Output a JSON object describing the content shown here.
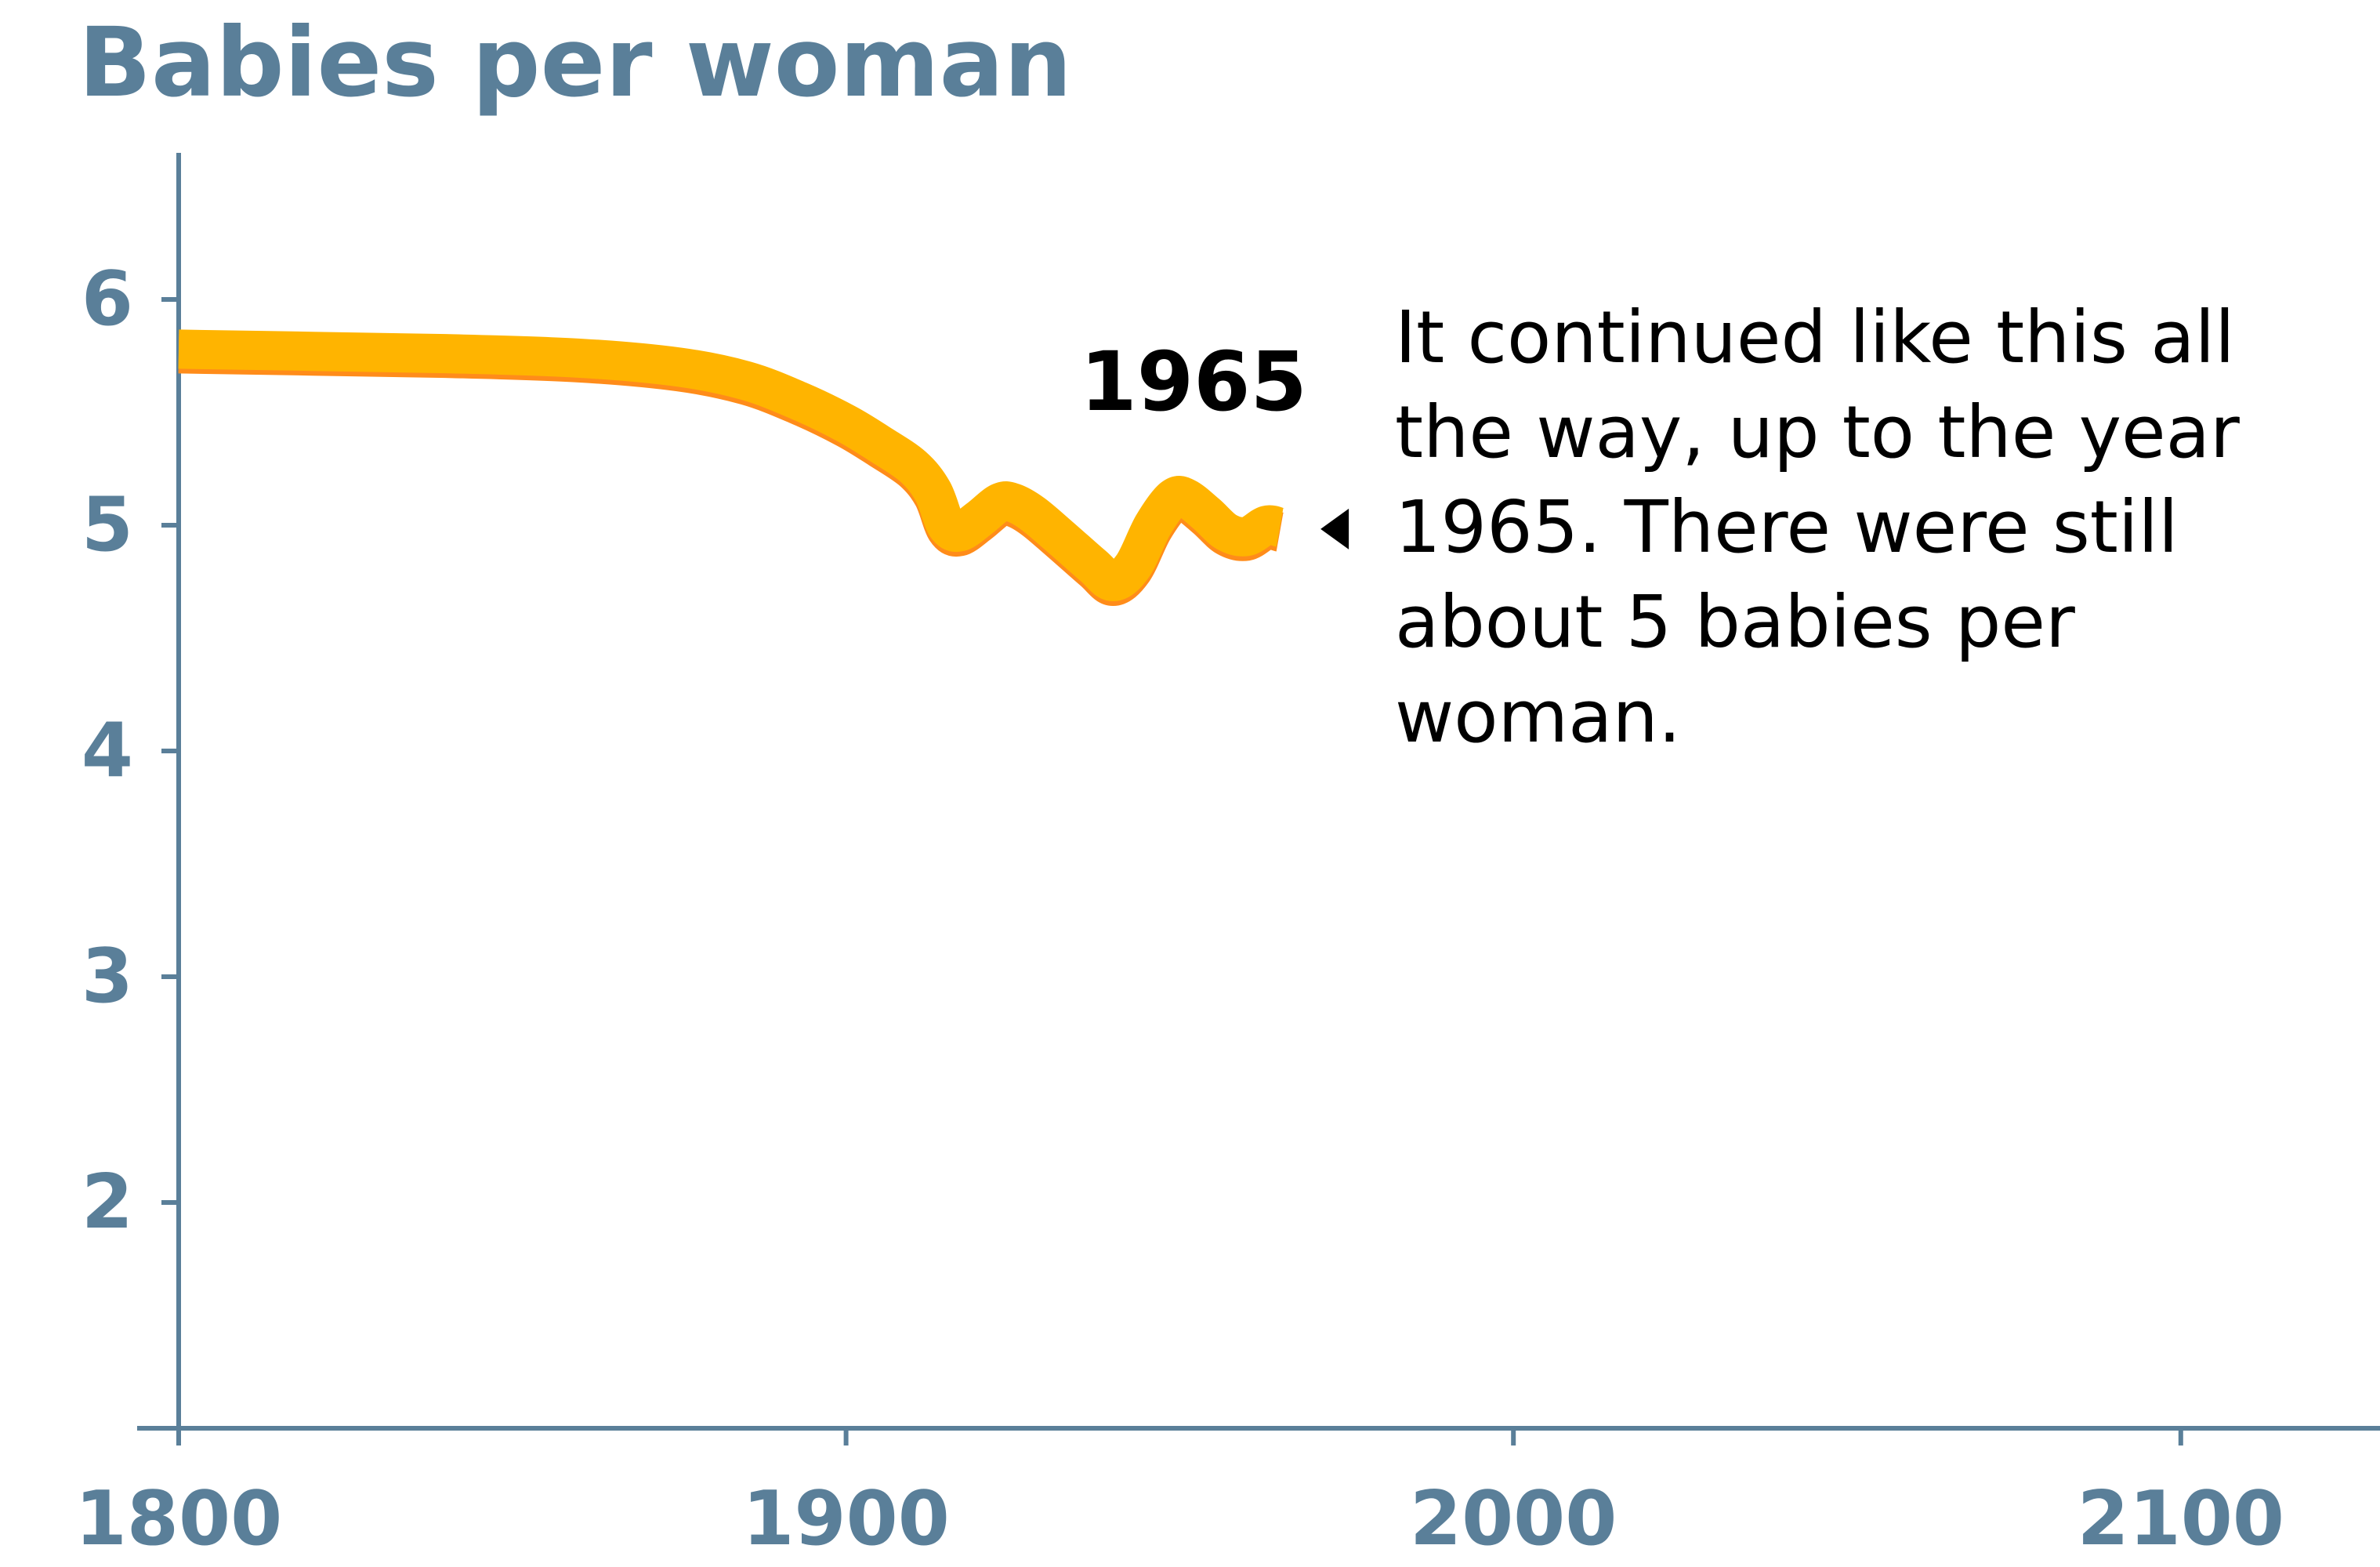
{
  "chart_data": {
    "type": "line",
    "title": "Babies per woman",
    "xlabel": "",
    "ylabel": "",
    "xlim": [
      1800,
      2130
    ],
    "ylim": [
      1,
      6.6
    ],
    "x_ticks": [
      1800,
      1900,
      2000,
      2100
    ],
    "x_tick_labels": [
      "1800",
      "1900",
      "2000",
      "2100"
    ],
    "y_ticks": [
      2,
      3,
      4,
      5,
      6
    ],
    "y_tick_labels": [
      "2",
      "3",
      "4",
      "5",
      "6"
    ],
    "grid": false,
    "legend": "none",
    "series": [
      {
        "x": [
          1800,
          1820,
          1840,
          1860,
          1875,
          1885,
          1893,
          1900,
          1905,
          1910,
          1913,
          1915,
          1917,
          1920,
          1923,
          1925,
          1928,
          1932,
          1937,
          1940,
          1943,
          1946,
          1949,
          1951,
          1954,
          1957,
          1960,
          1963,
          1965
        ],
        "values": [
          5.78,
          5.77,
          5.76,
          5.74,
          5.7,
          5.64,
          5.55,
          5.45,
          5.36,
          5.26,
          5.15,
          5.0,
          4.97,
          5.03,
          5.1,
          5.1,
          5.05,
          4.95,
          4.82,
          4.75,
          4.82,
          5.0,
          5.12,
          5.12,
          5.05,
          4.97,
          4.95,
          5.0,
          4.99
        ]
      }
    ],
    "highlight": {
      "label": "1965",
      "x": 1965,
      "y": 4.99
    },
    "annotation": "It continued like this all the way, up to the year 1965. There were still about 5 babies per woman.",
    "colors": {
      "axis": "#5a7f99",
      "line_main": "#ffb400",
      "line_shadow": "#ff8c1a",
      "text": "#000000"
    }
  }
}
